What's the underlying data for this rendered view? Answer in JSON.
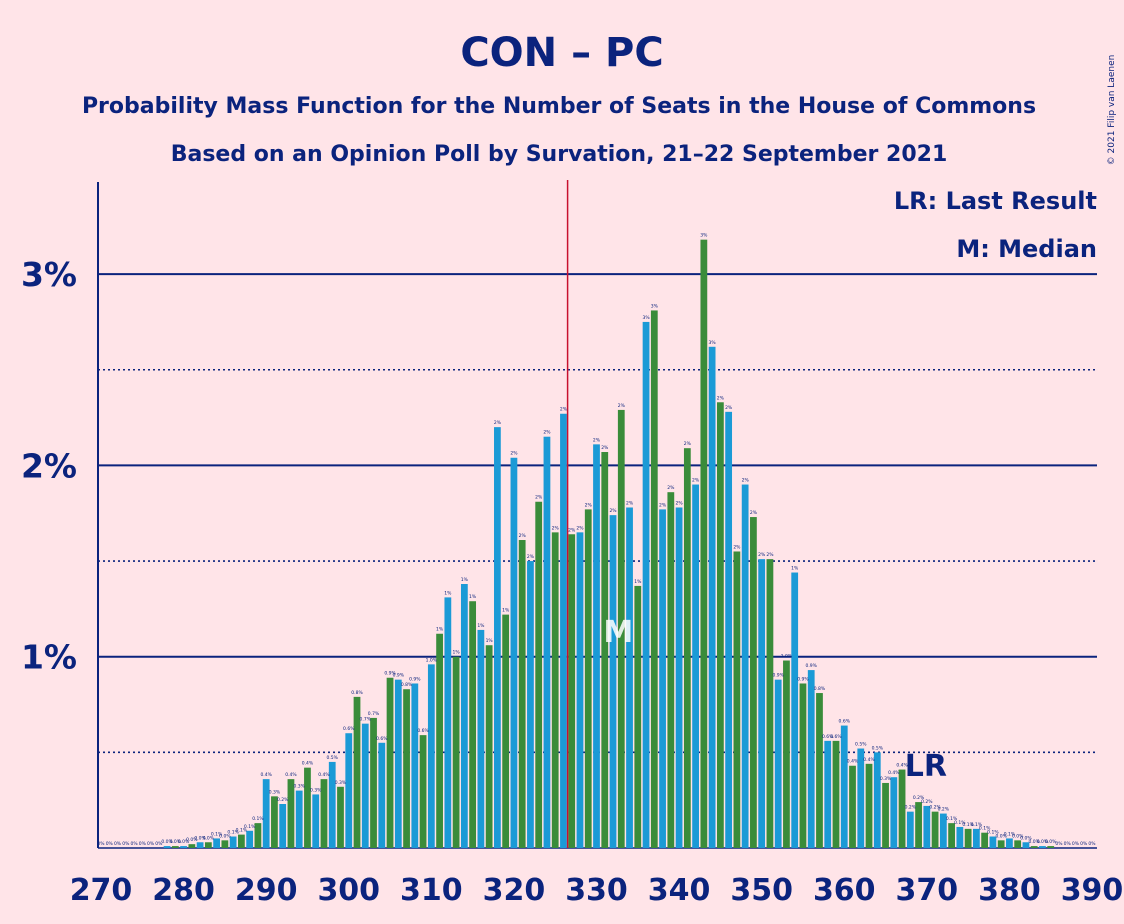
{
  "header": {
    "title": "CON – PC",
    "subtitle1": "Probability Mass Function for the Number of Seats in the House of Commons",
    "subtitle2": "Based on an Opinion Poll by Survation, 21–22 September 2021",
    "copyright": "© 2021 Filip van Laenen"
  },
  "legend": {
    "lr": "LR: Last Result",
    "median": "M: Median",
    "placement": "top-right"
  },
  "colors": {
    "background": "#ffe4e8",
    "text": "#0b237d",
    "even_bar": "#1b9ad6",
    "odd_bar": "#3a8c3a",
    "majority_line": "#c8102e"
  },
  "chart_data": {
    "type": "bar",
    "x_start": 270,
    "x_end": 390,
    "values": [
      0,
      0,
      0,
      0,
      0,
      0,
      0,
      0,
      0.01,
      0.01,
      0.01,
      0.02,
      0.03,
      0.03,
      0.05,
      0.04,
      0.06,
      0.07,
      0.09,
      0.13,
      0.36,
      0.27,
      0.23,
      0.36,
      0.3,
      0.42,
      0.28,
      0.36,
      0.45,
      0.32,
      0.6,
      0.79,
      0.65,
      0.68,
      0.55,
      0.89,
      0.88,
      0.83,
      0.86,
      0.59,
      0.96,
      1.12,
      1.31,
      1.0,
      1.38,
      1.29,
      1.14,
      1.06,
      2.2,
      1.22,
      2.04,
      1.61,
      1.5,
      1.81,
      2.15,
      1.65,
      2.27,
      1.64,
      1.65,
      1.77,
      2.11,
      2.07,
      1.74,
      2.29,
      1.78,
      1.37,
      2.75,
      2.81,
      1.77,
      1.86,
      1.78,
      2.09,
      1.9,
      3.18,
      2.62,
      2.33,
      2.28,
      1.55,
      1.9,
      1.73,
      1.51,
      1.51,
      0.88,
      0.98,
      1.44,
      0.86,
      0.93,
      0.81,
      0.56,
      0.56,
      0.64,
      0.43,
      0.52,
      0.44,
      0.5,
      0.34,
      0.37,
      0.41,
      0.19,
      0.24,
      0.22,
      0.19,
      0.18,
      0.13,
      0.11,
      0.1,
      0.1,
      0.08,
      0.06,
      0.04,
      0.05,
      0.04,
      0.03,
      0.01,
      0.01,
      0.01,
      0,
      0,
      0,
      0,
      0
    ],
    "x_ticks": [
      "270",
      "280",
      "290",
      "300",
      "310",
      "320",
      "330",
      "340",
      "350",
      "360",
      "370",
      "380",
      "390"
    ],
    "y_ticks": [
      "1%",
      "2%",
      "3%"
    ],
    "ylim": [
      0,
      3.5
    ],
    "majority_seat": 326,
    "median_seat": 333,
    "median_marker": "M",
    "last_result_seat": 370,
    "last_result_marker": "LR"
  }
}
